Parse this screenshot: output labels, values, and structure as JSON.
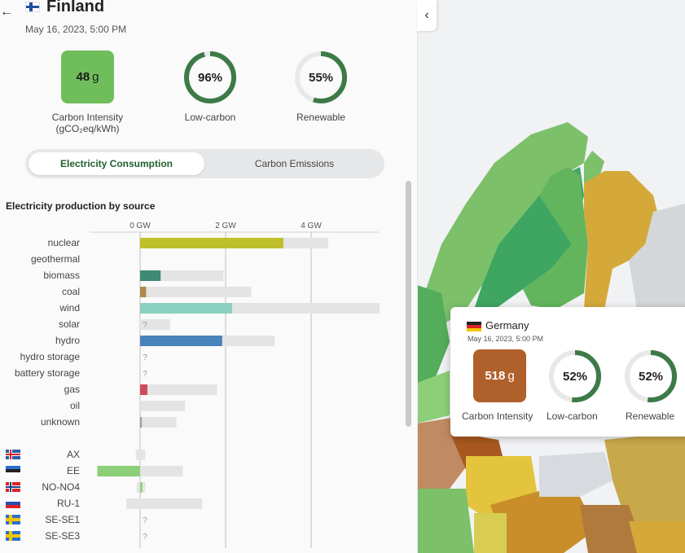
{
  "zone": {
    "name": "Finland",
    "datetime": "May 16, 2023, 5:00 PM",
    "carbon_intensity": {
      "value": "48",
      "unit": "g",
      "label": "Carbon Intensity",
      "sublabel": "(gCO₂eq/kWh)",
      "color": "#6fbe5b"
    },
    "low_carbon": {
      "value": "96%",
      "fraction": 0.96,
      "label": "Low-carbon"
    },
    "renewable": {
      "value": "55%",
      "fraction": 0.55,
      "label": "Renewable"
    }
  },
  "toggle": {
    "active": "Electricity Consumption",
    "inactive": "Carbon Emissions"
  },
  "section_title": "Electricity production by source",
  "chart_data": {
    "type": "bar",
    "axis_ticks": [
      "0 GW",
      "2 GW",
      "4 GW"
    ],
    "axis_tick_values": [
      0,
      2,
      4
    ],
    "xlim": [
      -1,
      5.5
    ],
    "unknown_marker": "?",
    "sources": [
      {
        "name": "nuclear",
        "value": 3.35,
        "capacity": 4.4,
        "color": "#bfbf2c"
      },
      {
        "name": "geothermal",
        "value": null,
        "capacity": null,
        "color": "#b5564c"
      },
      {
        "name": "biomass",
        "value": 0.48,
        "capacity": 1.95,
        "color": "#3e8a72"
      },
      {
        "name": "coal",
        "value": 0.14,
        "capacity": 2.6,
        "color": "#ad8a4c"
      },
      {
        "name": "wind",
        "value": 2.15,
        "capacity": 5.6,
        "color": "#8bd0c0"
      },
      {
        "name": "solar",
        "value": null,
        "capacity": 0.7,
        "color": "#f2c233"
      },
      {
        "name": "hydro",
        "value": 1.92,
        "capacity": 3.15,
        "color": "#4a83b9"
      },
      {
        "name": "hydro storage",
        "value": null,
        "capacity": null,
        "color": "#2c5f8a"
      },
      {
        "name": "battery storage",
        "value": null,
        "capacity": null,
        "color": "#5a5aa8"
      },
      {
        "name": "gas",
        "value": 0.17,
        "capacity": 1.8,
        "color": "#cc4a5e"
      },
      {
        "name": "oil",
        "value": 0,
        "capacity": 1.05,
        "color": "#6d6d6d"
      },
      {
        "name": "unknown",
        "value": 0.04,
        "capacity": 0.85,
        "color": "#9b9b9b"
      }
    ],
    "exchanges": [
      {
        "name": "AX",
        "value": 0,
        "capacity_min": -0.1,
        "capacity_max": 0.12,
        "color": "#8ccf78",
        "flag": "ax"
      },
      {
        "name": "EE",
        "value": -1.0,
        "capacity_min": -1.0,
        "capacity_max": 1.0,
        "color": "#8ccf78",
        "flag": "ee"
      },
      {
        "name": "NO-NO4",
        "value": 0.05,
        "capacity_min": -0.08,
        "capacity_max": 0.12,
        "color": "#8ccf78",
        "flag": "no"
      },
      {
        "name": "RU-1",
        "value": 0,
        "capacity_min": -0.32,
        "capacity_max": 1.45,
        "color": "#8ccf78",
        "flag": "ru"
      },
      {
        "name": "SE-SE1",
        "value": null,
        "capacity_min": null,
        "capacity_max": null,
        "color": "#8ccf78",
        "flag": "se"
      },
      {
        "name": "SE-SE3",
        "value": null,
        "capacity_min": null,
        "capacity_max": null,
        "color": "#8ccf78",
        "flag": "se"
      }
    ]
  },
  "tooltip": {
    "name": "Germany",
    "datetime": "May 16, 2023, 5:00 PM",
    "carbon_intensity": {
      "value": "518",
      "unit": "g",
      "label": "Carbon Intensity",
      "color": "#b0602a"
    },
    "low_carbon": {
      "value": "52%",
      "fraction": 0.52,
      "label": "Low-carbon"
    },
    "renewable": {
      "value": "52%",
      "fraction": 0.52,
      "label": "Renewable"
    }
  },
  "icons": {
    "back": "arrow-left-icon",
    "collapse": "chevron-left-icon"
  },
  "colors": {
    "ring": "#3d7a48",
    "ring_track": "#e8e8e8",
    "active_tab_text": "#1f5f2d",
    "unknown_bar": "#e4e4e4"
  }
}
